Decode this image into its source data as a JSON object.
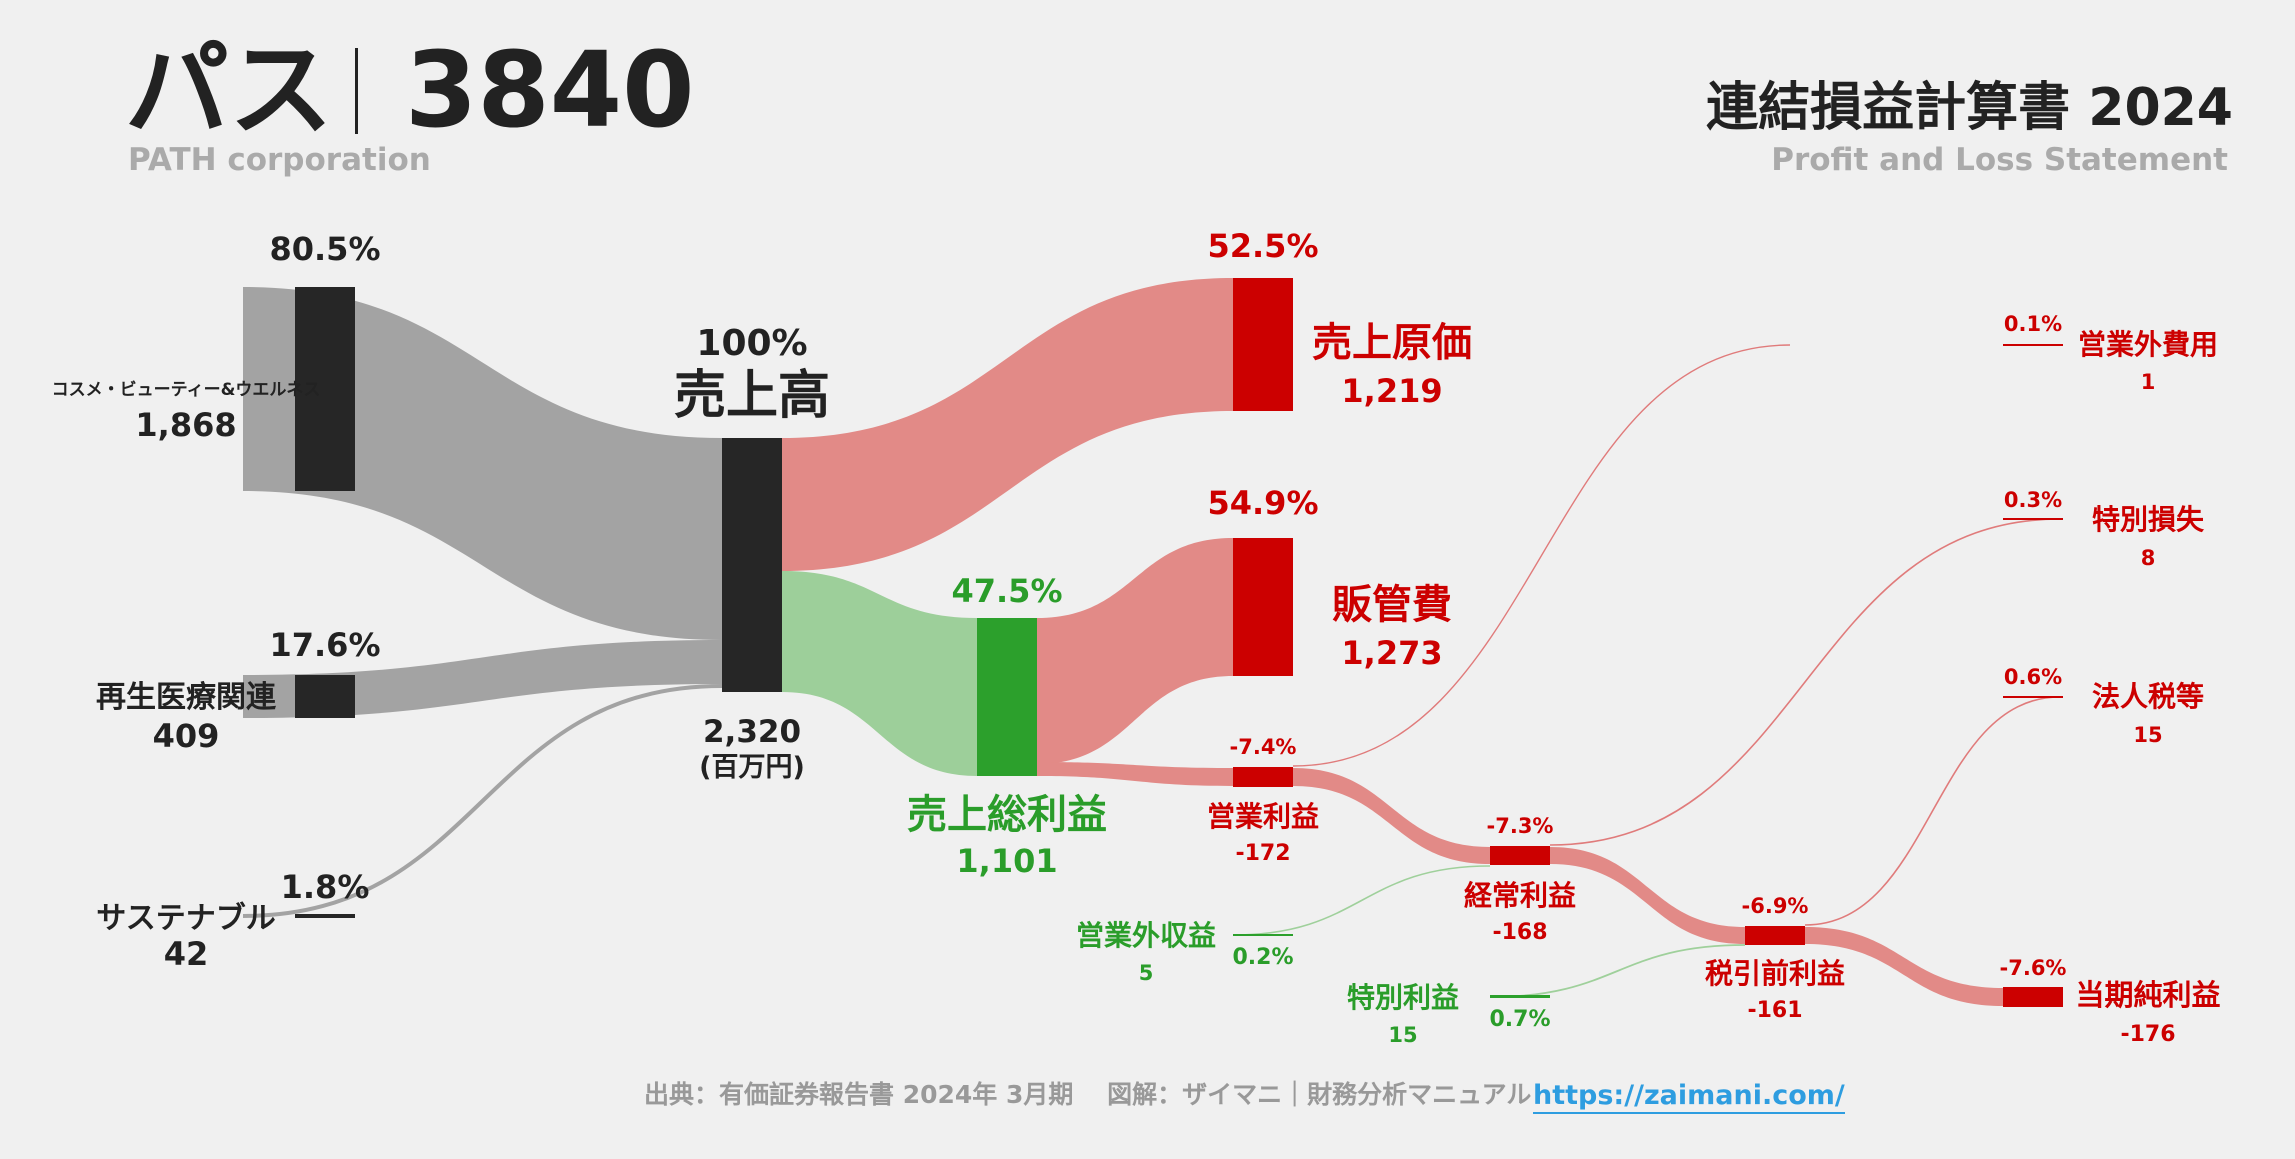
{
  "header": {
    "company": "パス",
    "code": "3840",
    "company_en": "PATH corporation",
    "title": "連結損益計算書 2024",
    "subtitle": "Profit and Loss Statement"
  },
  "footer": {
    "source": "出典：有価証券報告書 2024年 3月期　 図解：ザイマニ｜財務分析マニュアル",
    "url": "https://zaimani.com/"
  },
  "colors": {
    "dark": "#262626",
    "gray_flow": "#a3a3a3",
    "red": "#cc0000",
    "red_flow": "#e28a87",
    "green": "#2ca02c",
    "green_text": "#2a9d2a",
    "green_flow": "#9dcf9a"
  },
  "chart_data": {
    "type": "sankey",
    "unit": "(百万円)",
    "nodes": [
      {
        "id": "cosme",
        "label": "コスメ・ビューティー&ウエルネス",
        "value": "1,868",
        "pct": "80.5%",
        "kind": "segment"
      },
      {
        "id": "regen",
        "label": "再生医療関連",
        "value": "409",
        "pct": "17.6%",
        "kind": "segment"
      },
      {
        "id": "sustain",
        "label": "サステナブル",
        "value": "42",
        "pct": "1.8%",
        "kind": "segment"
      },
      {
        "id": "revenue",
        "label": "売上高",
        "value": "2,320",
        "pct": "100%",
        "kind": "total"
      },
      {
        "id": "cogs",
        "label": "売上原価",
        "value": "1,219",
        "pct": "52.5%",
        "kind": "cost"
      },
      {
        "id": "gross",
        "label": "売上総利益",
        "value": "1,101",
        "pct": "47.5%",
        "kind": "profit"
      },
      {
        "id": "sga",
        "label": "販管費",
        "value": "1,273",
        "pct": "54.9%",
        "kind": "cost"
      },
      {
        "id": "op",
        "label": "営業利益",
        "value": "-172",
        "pct": "-7.4%",
        "kind": "loss"
      },
      {
        "id": "nonop_inc",
        "label": "営業外収益",
        "value": "5",
        "pct": "0.2%",
        "kind": "income"
      },
      {
        "id": "nonop_exp",
        "label": "営業外費用",
        "value": "1",
        "pct": "0.1%",
        "kind": "cost"
      },
      {
        "id": "ordinary",
        "label": "経常利益",
        "value": "-168",
        "pct": "-7.3%",
        "kind": "loss"
      },
      {
        "id": "ext_gain",
        "label": "特別利益",
        "value": "15",
        "pct": "0.7%",
        "kind": "income"
      },
      {
        "id": "ext_loss",
        "label": "特別損失",
        "value": "8",
        "pct": "0.3%",
        "kind": "cost"
      },
      {
        "id": "pretax",
        "label": "税引前利益",
        "value": "-161",
        "pct": "-6.9%",
        "kind": "loss"
      },
      {
        "id": "tax",
        "label": "法人税等",
        "value": "15",
        "pct": "0.6%",
        "kind": "cost"
      },
      {
        "id": "net",
        "label": "当期純利益",
        "value": "-176",
        "pct": "-7.6%",
        "kind": "loss"
      }
    ],
    "links": [
      {
        "source": "cosme",
        "target": "revenue",
        "value": 1868
      },
      {
        "source": "regen",
        "target": "revenue",
        "value": 409
      },
      {
        "source": "sustain",
        "target": "revenue",
        "value": 42
      },
      {
        "source": "revenue",
        "target": "cogs",
        "value": 1219
      },
      {
        "source": "revenue",
        "target": "gross",
        "value": 1101
      },
      {
        "source": "gross",
        "target": "sga",
        "value": 1273
      },
      {
        "source": "gross",
        "target": "op",
        "value": -172
      },
      {
        "source": "op",
        "target": "ordinary",
        "value": -172
      },
      {
        "source": "op",
        "target": "nonop_exp",
        "value": 1
      },
      {
        "source": "nonop_inc",
        "target": "ordinary",
        "value": 5
      },
      {
        "source": "ordinary",
        "target": "pretax",
        "value": -168
      },
      {
        "source": "ordinary",
        "target": "ext_loss",
        "value": 8
      },
      {
        "source": "ext_gain",
        "target": "pretax",
        "value": 15
      },
      {
        "source": "pretax",
        "target": "net",
        "value": -161
      },
      {
        "source": "pretax",
        "target": "tax",
        "value": 15
      }
    ]
  }
}
